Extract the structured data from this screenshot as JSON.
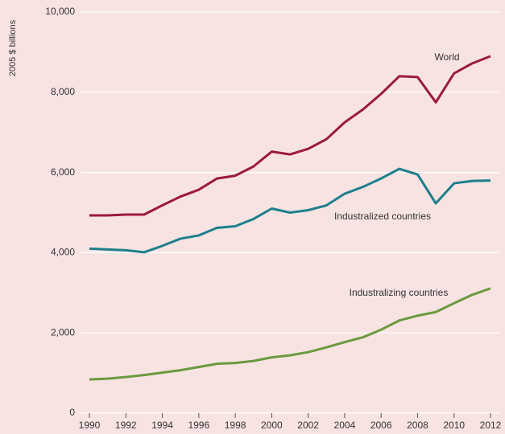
{
  "chart_data": {
    "type": "line",
    "y_label": "2005 $ billions",
    "x": [
      1990,
      1991,
      1992,
      1993,
      1994,
      1995,
      1996,
      1997,
      1998,
      1999,
      2000,
      2001,
      2002,
      2003,
      2004,
      2005,
      2006,
      2007,
      2008,
      2009,
      2010,
      2011,
      2012
    ],
    "series": [
      {
        "name": "World",
        "color": "#9b1b3a",
        "values": [
          4930,
          4930,
          4950,
          4950,
          5180,
          5400,
          5570,
          5850,
          5920,
          6150,
          6520,
          6450,
          6590,
          6830,
          7250,
          7570,
          7960,
          8400,
          8380,
          7750,
          8470,
          8720,
          8900
        ]
      },
      {
        "name": "Industralized countries",
        "color": "#1e7f8c",
        "values": [
          4100,
          4080,
          4060,
          4010,
          4170,
          4350,
          4430,
          4620,
          4660,
          4840,
          5100,
          5000,
          5060,
          5180,
          5470,
          5640,
          5850,
          6090,
          5950,
          5230,
          5730,
          5790,
          5800
        ]
      },
      {
        "name": "Industralizing countries",
        "color": "#6a9a3e",
        "values": [
          840,
          860,
          900,
          950,
          1010,
          1070,
          1150,
          1230,
          1250,
          1300,
          1390,
          1440,
          1520,
          1640,
          1770,
          1890,
          2080,
          2310,
          2430,
          2520,
          2740,
          2950,
          3110
        ]
      }
    ],
    "xlim": [
      1990,
      2012
    ],
    "xticks": [
      1990,
      1992,
      1994,
      1996,
      1998,
      2000,
      2002,
      2004,
      2006,
      2008,
      2010,
      2012
    ],
    "ylim": [
      0,
      10000
    ],
    "yticks": [
      0,
      {
        "value": 2000,
        "label": "2,000"
      },
      {
        "value": 4000,
        "label": "4,000"
      },
      {
        "value": 6000,
        "label": "6,000"
      },
      {
        "value": 8000,
        "label": "8,000"
      },
      {
        "value": 10000,
        "label": "10,000"
      }
    ],
    "grid": true,
    "background": "#f8e3e3"
  }
}
